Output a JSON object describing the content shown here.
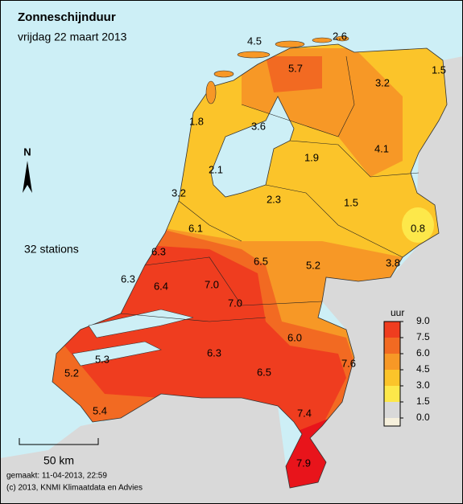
{
  "header": {
    "title": "Zonneschijnduur",
    "subtitle": "vrijdag 22 maart 2013"
  },
  "north_label": "N",
  "station_count": "32 stations",
  "stations": [
    4.5,
    2.6,
    1.5,
    5.7,
    3.2,
    1.8,
    3.6,
    1.9,
    4.1,
    2.1,
    3.2,
    2.3,
    1.5,
    0.8,
    6.1,
    6.3,
    6.5,
    5.2,
    3.8,
    6.3,
    6.4,
    {
      "value": 7,
      "label": "7.0"
    },
    {
      "value": 7,
      "label": "7.0"
    },
    {
      "value": 6,
      "label": "6.0"
    },
    6.3,
    7.6,
    5.3,
    5.2,
    6.5,
    7.4,
    5.4,
    7.9
  ],
  "legend": {
    "title": "uur",
    "ticks": [
      {
        "value": 9,
        "label": "9.0"
      },
      7.5,
      {
        "value": 6,
        "label": "6.0"
      },
      4.5,
      {
        "value": 3,
        "label": "3.0"
      },
      1.5,
      {
        "value": 0,
        "label": "0.0"
      }
    ],
    "colors": [
      "#e8141b",
      "#ef3d1f",
      "#f26a22",
      "#f79826",
      "#fbc42a",
      "#fde84a",
      "#f6f0dc"
    ]
  },
  "scale_label": "50 km",
  "footer": {
    "made": "gemaakt: 11-04-2013, 22:59",
    "copyright": "(c) 2013, KNMI Klimaatdata en Advies"
  }
}
